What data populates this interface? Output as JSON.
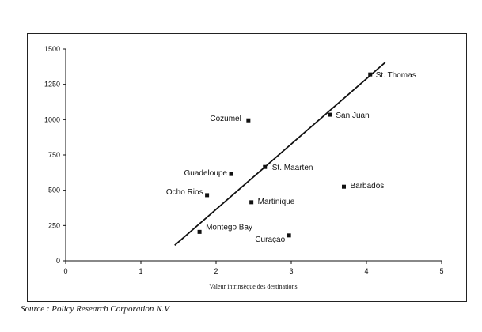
{
  "chart_data": {
    "type": "scatter",
    "title": "",
    "xlabel": "Valeur intrinsèque des destinations",
    "ylabel": "",
    "xlim": [
      0,
      5
    ],
    "ylim": [
      0,
      1500
    ],
    "xticks": [
      "0",
      "1",
      "2",
      "3",
      "4",
      "5"
    ],
    "yticks": [
      "0",
      "250",
      "500",
      "750",
      "1000",
      "1250",
      "1500"
    ],
    "grid": false,
    "legend": "none",
    "points": [
      {
        "label": "St. Thomas",
        "x": 4.05,
        "y": 1320
      },
      {
        "label": "San Juan",
        "x": 3.52,
        "y": 1035
      },
      {
        "label": "Cozumel",
        "x": 2.43,
        "y": 995
      },
      {
        "label": "St. Maarten",
        "x": 2.65,
        "y": 665
      },
      {
        "label": "Guadeloupe",
        "x": 2.2,
        "y": 615
      },
      {
        "label": "Barbados",
        "x": 3.7,
        "y": 525
      },
      {
        "label": "Ocho Rios",
        "x": 1.88,
        "y": 465
      },
      {
        "label": "Martinique",
        "x": 2.47,
        "y": 415
      },
      {
        "label": "Montego Bay",
        "x": 1.78,
        "y": 205
      },
      {
        "label": "Curaçao",
        "x": 2.97,
        "y": 180
      }
    ],
    "trendline": {
      "x": [
        1.45,
        4.25
      ],
      "y": [
        110,
        1405
      ]
    },
    "colors": {
      "mark": "#111111",
      "line": "#111111"
    }
  },
  "source": "Source : Policy Research Corporation N.V."
}
